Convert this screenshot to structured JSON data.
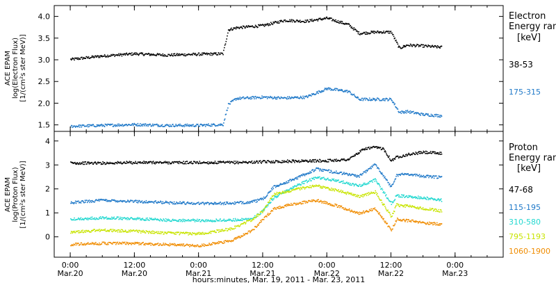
{
  "chart_data": [
    {
      "type": "scatter",
      "panel": "electron",
      "ylabel_lines": [
        "ACE EPAM",
        "log(Electron Flux)",
        "[1/(cm²s ster MeV)]"
      ],
      "ylim": [
        1.35,
        4.25
      ],
      "yticks": [
        1.5,
        2.0,
        2.5,
        3.0,
        3.5,
        4.0
      ],
      "ytick_labels": [
        "1.5",
        "2.0",
        "2.5",
        "3.0",
        "3.5",
        "4.0"
      ],
      "legend_title_lines": [
        "Electron",
        "Energy range",
        "[keV]"
      ],
      "series": [
        {
          "name": "38-53",
          "color": "#000000",
          "x": [
            0,
            6,
            12,
            18,
            24,
            28.5,
            29.5,
            31,
            36,
            40,
            44,
            48,
            52,
            54,
            57,
            60,
            61.5,
            63,
            66,
            69.5
          ],
          "y": [
            3.02,
            3.1,
            3.15,
            3.12,
            3.14,
            3.15,
            3.7,
            3.75,
            3.8,
            3.92,
            3.9,
            3.97,
            3.82,
            3.62,
            3.65,
            3.65,
            3.28,
            3.35,
            3.33,
            3.3
          ]
        },
        {
          "name": "175-315",
          "color": "#1e78c8",
          "x": [
            0,
            6,
            12,
            18,
            24,
            28.5,
            29.5,
            31,
            36,
            40,
            44,
            48,
            52,
            54,
            57,
            60,
            61.5,
            63,
            66,
            69.5
          ],
          "y": [
            1.48,
            1.5,
            1.52,
            1.5,
            1.5,
            1.52,
            1.98,
            2.12,
            2.15,
            2.13,
            2.15,
            2.35,
            2.28,
            2.1,
            2.1,
            2.1,
            1.8,
            1.82,
            1.75,
            1.72
          ]
        }
      ]
    },
    {
      "type": "scatter",
      "panel": "proton",
      "ylabel_lines": [
        "ACE EPAM",
        "log(Proton Flux)",
        "[1/(cm²s ster MeV)]"
      ],
      "ylim": [
        -0.85,
        4.4
      ],
      "yticks": [
        0,
        1,
        2,
        3,
        4
      ],
      "ytick_labels": [
        "0",
        "1",
        "2",
        "3",
        "4"
      ],
      "legend_title_lines": [
        "Proton",
        "Energy range",
        "[keV]"
      ],
      "series": [
        {
          "name": "47-68",
          "color": "#000000",
          "x": [
            0,
            6,
            12,
            18,
            24,
            30,
            36,
            42,
            48,
            52,
            55,
            57,
            58.5,
            60,
            61,
            63,
            66,
            69.5
          ],
          "y": [
            3.1,
            3.1,
            3.12,
            3.12,
            3.12,
            3.12,
            3.15,
            3.18,
            3.2,
            3.25,
            3.7,
            3.75,
            3.7,
            3.2,
            3.35,
            3.45,
            3.55,
            3.5
          ]
        },
        {
          "name": "115-195",
          "color": "#1e78c8",
          "x": [
            0,
            6,
            12,
            18,
            24,
            30,
            34,
            36,
            38,
            42,
            46,
            50,
            54,
            57,
            60,
            61,
            63,
            66,
            69.5
          ],
          "y": [
            1.45,
            1.55,
            1.5,
            1.45,
            1.42,
            1.42,
            1.48,
            1.6,
            2.1,
            2.45,
            2.85,
            2.7,
            2.55,
            3.05,
            2.1,
            2.6,
            2.65,
            2.55,
            2.5
          ]
        },
        {
          "name": "310-580",
          "color": "#22d8d0",
          "x": [
            0,
            6,
            12,
            18,
            24,
            30,
            34,
            36,
            38,
            42,
            46,
            50,
            54,
            57,
            60,
            61,
            63,
            66,
            69.5
          ],
          "y": [
            0.75,
            0.82,
            0.78,
            0.72,
            0.7,
            0.72,
            0.78,
            1.1,
            1.65,
            2.15,
            2.5,
            2.35,
            2.15,
            2.4,
            1.4,
            1.75,
            1.7,
            1.65,
            1.55
          ]
        },
        {
          "name": "795-1193",
          "color": "#c8e400",
          "x": [
            0,
            6,
            12,
            18,
            24,
            30,
            34,
            36,
            38,
            42,
            46,
            50,
            54,
            57,
            60,
            61,
            63,
            66,
            69.5
          ],
          "y": [
            0.22,
            0.3,
            0.25,
            0.18,
            0.15,
            0.35,
            0.75,
            1.1,
            1.8,
            2.0,
            2.15,
            1.95,
            1.7,
            1.9,
            0.85,
            1.35,
            1.3,
            1.2,
            1.1
          ]
        },
        {
          "name": "1060-1900",
          "color": "#f08c00",
          "x": [
            0,
            6,
            12,
            18,
            24,
            30,
            34,
            36,
            38,
            42,
            46,
            50,
            54,
            57,
            60,
            61,
            63,
            66,
            69.5
          ],
          "y": [
            -0.3,
            -0.25,
            -0.25,
            -0.3,
            -0.35,
            -0.15,
            0.3,
            0.75,
            1.2,
            1.4,
            1.55,
            1.3,
            1.0,
            1.2,
            0.3,
            0.75,
            0.7,
            0.6,
            0.55
          ]
        }
      ]
    }
  ],
  "x_axis": {
    "xlim": [
      -3,
      81
    ],
    "ticks": [
      0,
      12,
      24,
      36,
      48,
      60,
      72
    ],
    "tick_labels_top": [
      "0:00",
      "12:00",
      "0:00",
      "12:00",
      "0:00",
      "12:00",
      "0:00"
    ],
    "tick_labels_bottom": [
      "Mar.20",
      "Mar.20",
      "Mar.21",
      "Mar.21",
      "Mar.22",
      "Mar.22",
      "Mar.23"
    ],
    "xlabel": "hours:minutes, Mar. 19, 2011 - Mar. 23, 2011"
  },
  "colors": {
    "axis": "#000000",
    "background": "#ffffff"
  }
}
